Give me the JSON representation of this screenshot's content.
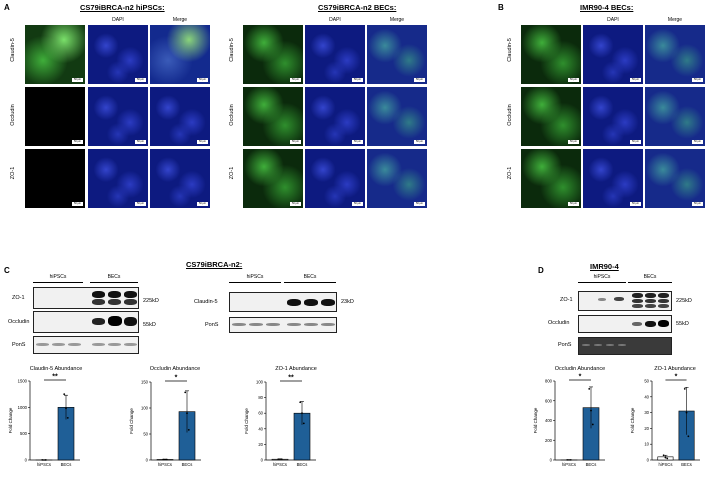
{
  "panels": {
    "A": {
      "letter": "A",
      "hipsc": {
        "title": "CS79iBRCA-n2 hiPSCs:",
        "cols": [
          "DAPI",
          "Merge"
        ]
      },
      "bec": {
        "title": "CS79iBRCA-n2 BECs:",
        "cols": [
          "DAPI",
          "Merge"
        ]
      },
      "rows": [
        "Claudin-5",
        "Occludin",
        "ZO-1"
      ]
    },
    "B": {
      "letter": "B",
      "title": "IMR90-4 BECs:",
      "cols": [
        "DAPI",
        "Merge"
      ],
      "rows": [
        "Claudin-5",
        "Occludin",
        "ZO-1"
      ]
    },
    "C": {
      "letter": "C",
      "title": "CS79iBRCA-n2:",
      "groups": [
        "hiPSCs",
        "BECs"
      ],
      "blot_left_rows": [
        "ZO-1",
        "Occludin",
        "PonS"
      ],
      "blot_left_kd": [
        "225kD",
        "55kD"
      ],
      "blot_right_rows": [
        "Claudin-5",
        "PonS"
      ],
      "blot_right_kd": [
        "23kD"
      ]
    },
    "D": {
      "letter": "D",
      "title": "IMR90-4",
      "groups": [
        "hiPSCs",
        "BECs"
      ],
      "blot_rows": [
        "ZO-1",
        "Occludin",
        "PonS"
      ],
      "blot_kd": [
        "225kD",
        "55kD"
      ]
    }
  },
  "scale_bar": "50 µm",
  "colors": {
    "bar_fill": "#1f5f97",
    "green": "#3fae3a",
    "blue": "#1d2fb8"
  },
  "chart_data": [
    {
      "type": "bar",
      "title": "Claudin-5 Abundance",
      "ylabel": "Fold Change",
      "categories": [
        "hiPSCs",
        "BECs"
      ],
      "values": [
        1,
        1000
      ],
      "errors": [
        0.8,
        230
      ],
      "points": [
        [
          1.6,
          0.6,
          0.9
        ],
        [
          1250,
          980,
          800
        ]
      ],
      "ylim": [
        0,
        1500
      ],
      "yticks": [
        0,
        500,
        1000,
        1500
      ],
      "significance": "**"
    },
    {
      "type": "bar",
      "title": "Occludin Abundance",
      "ylabel": "Fold Change",
      "categories": [
        "hiPSCs",
        "BECs"
      ],
      "values": [
        1,
        93
      ],
      "errors": [
        0.5,
        40
      ],
      "points": [
        [
          1,
          1,
          1
        ],
        [
          130,
          90,
          58
        ]
      ],
      "ylim": [
        0,
        150
      ],
      "yticks": [
        0,
        50,
        100,
        150
      ],
      "significance": "*"
    },
    {
      "type": "bar",
      "title": "ZO-1 Abundance",
      "ylabel": "Fold Change",
      "categories": [
        "hiPSCs",
        "BECs"
      ],
      "values": [
        1,
        60
      ],
      "errors": [
        0.5,
        15
      ],
      "points": [
        [
          1,
          1,
          1
        ],
        [
          74,
          60,
          47
        ]
      ],
      "ylim": [
        0,
        100
      ],
      "yticks": [
        0,
        20,
        40,
        60,
        80,
        100
      ],
      "significance": "**"
    },
    {
      "type": "bar",
      "title": "Occludin Abundance",
      "ylabel": "Fold Change",
      "categories": [
        "hiPSCs",
        "BECs"
      ],
      "values": [
        1,
        530
      ],
      "errors": [
        0.5,
        210
      ],
      "points": [
        [
          1,
          1,
          1
        ],
        [
          720,
          500,
          360
        ]
      ],
      "ylim": [
        0,
        800
      ],
      "yticks": [
        0,
        200,
        400,
        600,
        800
      ],
      "significance": "*"
    },
    {
      "type": "bar",
      "title": "ZO-1 Abundance",
      "ylabel": "Fold Change",
      "categories": [
        "hiPSCs",
        "BECs"
      ],
      "values": [
        2,
        31
      ],
      "errors": [
        1,
        15
      ],
      "points": [
        [
          3,
          1.5,
          1
        ],
        [
          45,
          30,
          15
        ]
      ],
      "ylim": [
        0,
        50
      ],
      "yticks": [
        0,
        10,
        20,
        30,
        40,
        50
      ],
      "significance": "*"
    }
  ]
}
